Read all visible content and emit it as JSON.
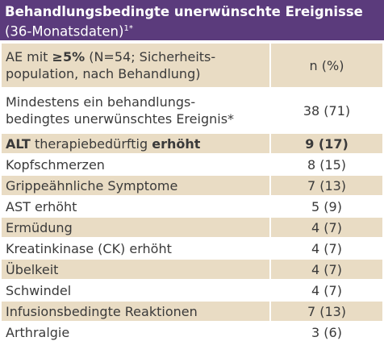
{
  "title": {
    "bold": "Behandlungsbedingte unerwünschte Ereignisse",
    "normal": "(36-Monatsdaten)",
    "sup": "1*"
  },
  "column_header": {
    "label": {
      "prefix": "AE mit",
      "bold": "≥5%",
      "suffix": "(N=54; Sicherheits-\npopulation, nach Behandlung)"
    },
    "value": "n (%)"
  },
  "rows": [
    {
      "label": "Mindestens ein behandlungs-\nbedingtes unerwünschtes Ereignis*",
      "value": "38 (71)"
    },
    {
      "label_parts": [
        {
          "text": "ALT",
          "bold": true
        },
        {
          "text": "therapiebedürftig",
          "bold": false
        },
        {
          "text": "erhöht",
          "bold": true
        }
      ],
      "value": "9 (17)",
      "bold": true
    },
    {
      "label": "Kopfschmerzen",
      "value": "8 (15)"
    },
    {
      "label": "Grippeähnliche Symptome",
      "value": "7 (13)"
    },
    {
      "label": "AST erhöht",
      "value": "5 (9)"
    },
    {
      "label": "Ermüdung",
      "value": "4 (7)"
    },
    {
      "label": "Kreatinkinase (CK) erhöht",
      "value": "4 (7)"
    },
    {
      "label": "Übelkeit",
      "value": "4 (7)"
    },
    {
      "label": "Schwindel",
      "value": "4 (7)"
    },
    {
      "label": "Infusionsbedingte Reaktionen",
      "value": "7 (13)"
    },
    {
      "label": "Arthralgie",
      "value": "3 (6)"
    }
  ]
}
